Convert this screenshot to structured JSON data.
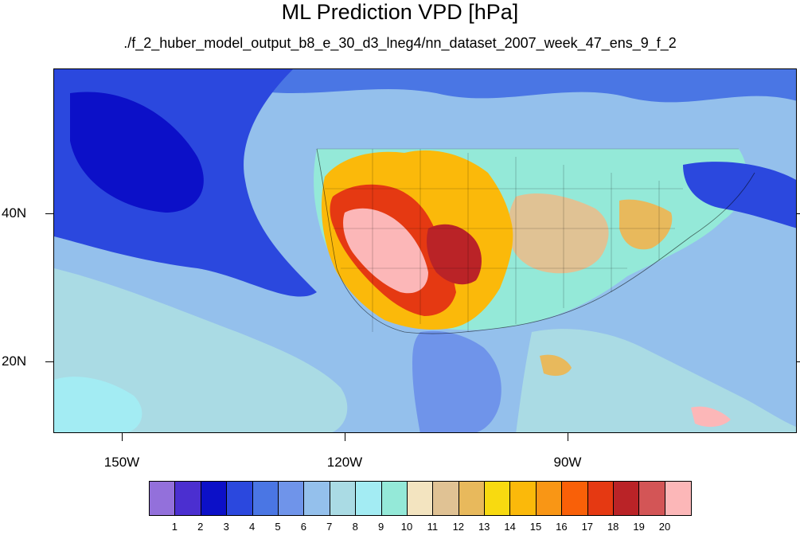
{
  "title": "ML Prediction VPD [hPa]",
  "subtitle": "./f_2_huber_model_output_b8_e_30_d3_lneg4/nn_dataset_2007_week_47_ens_9_f_2",
  "latitude_labels": [
    "40N",
    "20N"
  ],
  "longitude_labels": [
    "150W",
    "120W",
    "90W"
  ],
  "colorbar": {
    "labels": [
      "1",
      "2",
      "3",
      "4",
      "5",
      "6",
      "7",
      "8",
      "9",
      "10",
      "11",
      "12",
      "13",
      "14",
      "15",
      "16",
      "17",
      "18",
      "19",
      "20"
    ],
    "colors": [
      "#9370db",
      "#4b2fd0",
      "#0c10c8",
      "#2b48de",
      "#4a76e4",
      "#6f94ea",
      "#94c0ec",
      "#aadbe4",
      "#a3ecf3",
      "#94e9d8",
      "#f3e4c0",
      "#e0c294",
      "#e8b95c",
      "#f8da10",
      "#fbb90a",
      "#f99615",
      "#f96008",
      "#e53912",
      "#ba2327",
      "#d35556",
      "#fcb7b8"
    ]
  },
  "map": {
    "region": "North America and eastern Pacific",
    "ocean_background": "#aadbe4",
    "land_background": "#94e9d8",
    "hotspot_color": "#fcb7b8"
  }
}
